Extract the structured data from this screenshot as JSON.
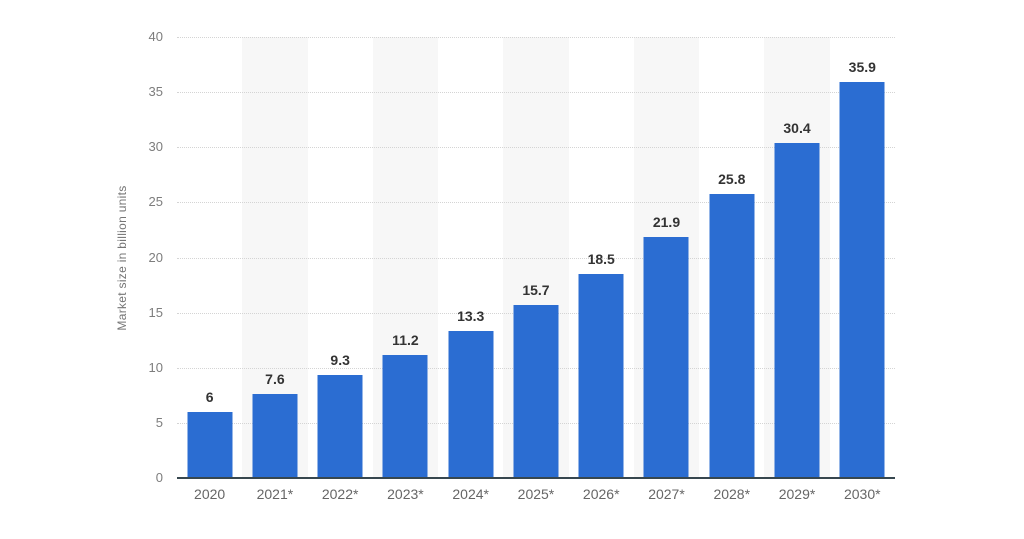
{
  "chart_data": {
    "type": "bar",
    "title": "",
    "xlabel": "",
    "ylabel": "Market size in billion units",
    "categories": [
      "2020",
      "2021*",
      "2022*",
      "2023*",
      "2024*",
      "2025*",
      "2026*",
      "2027*",
      "2028*",
      "2029*",
      "2030*"
    ],
    "values": [
      6,
      7.6,
      9.3,
      11.2,
      13.3,
      15.7,
      18.5,
      21.9,
      25.8,
      30.4,
      35.9
    ],
    "value_labels": [
      "6",
      "7.6",
      "9.3",
      "11.2",
      "13.3",
      "15.7",
      "18.5",
      "21.9",
      "25.8",
      "30.4",
      "35.9"
    ],
    "ylim": [
      0,
      40
    ],
    "yticks": [
      0,
      5,
      10,
      15,
      20,
      25,
      30,
      35,
      40
    ],
    "grid": "horizontal-dotted",
    "legend": "none",
    "banded_column_indexes": [
      1,
      3,
      5,
      7,
      9
    ],
    "colors": {
      "bar": "#2b6dd2",
      "band": "#f7f7f7",
      "gridline": "#d4d4d4",
      "axis_line": "#37474f",
      "y_tick_label": "#7d7d7d",
      "x_tick_label": "#666666",
      "value_label": "#333333",
      "background": "#ffffff"
    }
  }
}
